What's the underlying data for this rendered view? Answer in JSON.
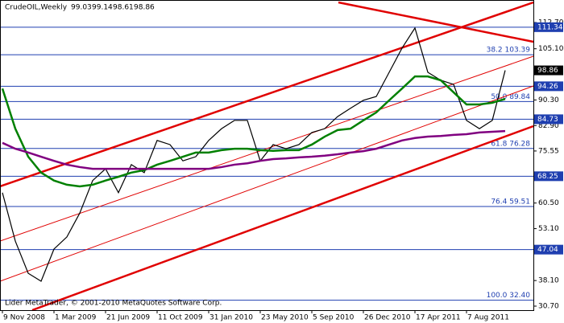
{
  "chart_data": {
    "type": "line",
    "title": "CrudeOIL,Weekly",
    "ohlc": [
      99.03,
      99.14,
      98.61,
      98.86
    ],
    "footer": "Lider MetaTrader, © 2001-2010 MetaQuotes Software Corp.",
    "categories": [
      "9 Nov 2008",
      null,
      null,
      null,
      "1 Mar 2009",
      null,
      null,
      null,
      "21 Jun 2009",
      null,
      null,
      null,
      "11 Oct 2009",
      null,
      null,
      null,
      "31 Jan 2010",
      null,
      null,
      null,
      "23 May 2010",
      null,
      null,
      null,
      "5 Sep 2010",
      null,
      null,
      null,
      "26 Dec 2010",
      null,
      null,
      null,
      "17 Apr 2011",
      null,
      null,
      null,
      "7 Aug 2011",
      null,
      null,
      null
    ],
    "series": [
      {
        "name": "Close",
        "color": "#000000",
        "values": [
          63.5,
          49.5,
          40.2,
          37.9,
          47.2,
          50.7,
          57.6,
          67,
          70.4,
          63.5,
          71.6,
          69.3,
          78.6,
          77.4,
          72.7,
          73.9,
          78.6,
          82,
          84.4,
          84.4,
          72.7,
          77.4,
          76.2,
          77.4,
          80.9,
          82,
          85.5,
          87.9,
          90.2,
          91.3,
          98.3,
          105.3,
          111.1,
          98.3,
          96,
          94.8,
          84.4,
          82,
          84.4,
          98.86
        ]
      },
      {
        "name": "MA fast",
        "color": "#008000",
        "values": [
          93.6,
          82,
          73.9,
          69.3,
          67,
          65.8,
          65.3,
          65.8,
          67,
          68.1,
          69.3,
          70,
          71.6,
          72.7,
          73.9,
          75.1,
          75.1,
          75.8,
          76.2,
          76.2,
          75.8,
          75.6,
          75.8,
          75.8,
          77.4,
          79.7,
          81.6,
          82,
          84.4,
          86.7,
          90.2,
          93.6,
          97.1,
          97.1,
          96,
          92.5,
          89,
          89,
          89.5,
          90.6
        ]
      },
      {
        "name": "MA slow",
        "color": "#800080",
        "values": [
          77.9,
          76.2,
          75.1,
          73.9,
          72.7,
          71.6,
          70.9,
          70.4,
          70.4,
          70.4,
          70.4,
          70.4,
          70.4,
          70.4,
          70.4,
          70.4,
          70.4,
          70.9,
          71.6,
          72,
          72.7,
          73.2,
          73.4,
          73.7,
          73.9,
          74.2,
          74.6,
          75.1,
          75.5,
          76.2,
          77.4,
          78.6,
          79.3,
          79.7,
          79.9,
          80.2,
          80.4,
          80.9,
          81.1,
          81.3
        ]
      }
    ],
    "ylim": [
      29.54,
      119.2
    ],
    "yticks": [
      {
        "value": 30.7,
        "label": "30.70"
      },
      {
        "value": 38.1,
        "label": "38.10"
      },
      {
        "value": 53.1,
        "label": "53.10"
      },
      {
        "value": 60.5,
        "label": "60.50"
      },
      {
        "value": 75.55,
        "label": "75.55"
      },
      {
        "value": 82.9,
        "label": "82.90"
      },
      {
        "value": 90.3,
        "label": "90.30"
      },
      {
        "value": 105.1,
        "label": "105.10"
      },
      {
        "value": 112.7,
        "label": "112.70"
      }
    ],
    "levels": [
      111.34,
      94.26,
      84.73,
      68.25,
      47.04
    ],
    "last_price": 98.86,
    "fib_levels": [
      {
        "value": 103.39,
        "label": "38.2 103.39"
      },
      {
        "value": 89.84,
        "label": "50.0 89.84"
      },
      {
        "value": 76.28,
        "label": "61.8 76.28"
      },
      {
        "value": 59.51,
        "label": "76.4 59.51"
      },
      {
        "value": 32.4,
        "label": "100.0 32.40"
      }
    ]
  }
}
